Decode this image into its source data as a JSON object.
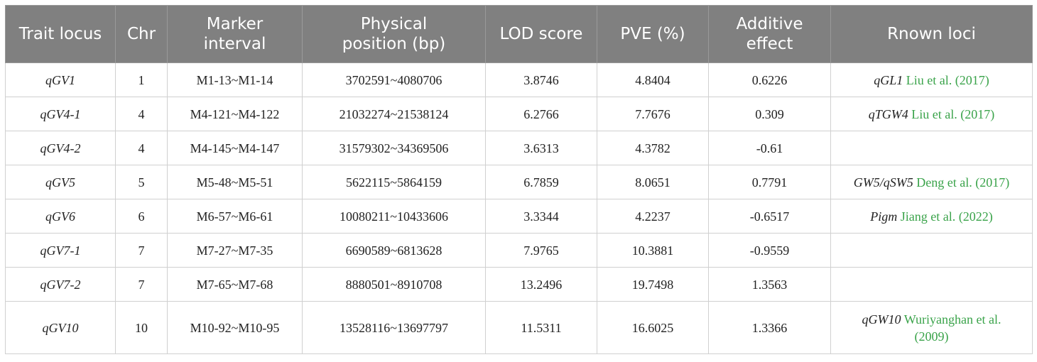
{
  "table": {
    "headers": [
      "Trait locus",
      "Chr",
      "Marker interval",
      "Physical position (bp)",
      "LOD score",
      "PVE (%)",
      "Additive effect",
      "Rnown loci"
    ],
    "rows": [
      {
        "locus": "qGV1",
        "chr": "1",
        "marker": "M1-13~M1-14",
        "position": "3702591~4080706",
        "lod": "3.8746",
        "pve": "4.8404",
        "additive": "0.6226",
        "known_gene": "qGL1",
        "known_cite": "Liu et al. (2017)"
      },
      {
        "locus": "qGV4-1",
        "chr": "4",
        "marker": "M4-121~M4-122",
        "position": "21032274~21538124",
        "lod": "6.2766",
        "pve": "7.7676",
        "additive": "0.309",
        "known_gene": "qTGW4",
        "known_cite": "Liu et al. (2017)"
      },
      {
        "locus": "qGV4-2",
        "chr": "4",
        "marker": "M4-145~M4-147",
        "position": "31579302~34369506",
        "lod": "3.6313",
        "pve": "4.3782",
        "additive": "-0.61",
        "known_gene": "",
        "known_cite": ""
      },
      {
        "locus": "qGV5",
        "chr": "5",
        "marker": "M5-48~M5-51",
        "position": "5622115~5864159",
        "lod": "6.7859",
        "pve": "8.0651",
        "additive": "0.7791",
        "known_gene": "GW5/qSW5",
        "known_cite": "Deng et al. (2017)"
      },
      {
        "locus": "qGV6",
        "chr": "6",
        "marker": "M6-57~M6-61",
        "position": "10080211~10433606",
        "lod": "3.3344",
        "pve": "4.2237",
        "additive": "-0.6517",
        "known_gene": "Pigm",
        "known_cite": "Jiang et al. (2022)"
      },
      {
        "locus": "qGV7-1",
        "chr": "7",
        "marker": "M7-27~M7-35",
        "position": "6690589~6813628",
        "lod": "7.9765",
        "pve": "10.3881",
        "additive": "-0.9559",
        "known_gene": "",
        "known_cite": ""
      },
      {
        "locus": "qGV7-2",
        "chr": "7",
        "marker": "M7-65~M7-68",
        "position": "8880501~8910708",
        "lod": "13.2496",
        "pve": "19.7498",
        "additive": "1.3563",
        "known_gene": "",
        "known_cite": ""
      },
      {
        "locus": "qGV10",
        "chr": "10",
        "marker": "M10-92~M10-95",
        "position": "13528116~13697797",
        "lod": "11.5311",
        "pve": "16.6025",
        "additive": "1.3366",
        "known_gene": "qGW10",
        "known_cite": "Wuriyanghan et al. (2009)"
      }
    ]
  },
  "colors": {
    "header_bg": "#808080",
    "header_text": "#ffffff",
    "citation": "#3aa34a",
    "border": "#d0d0d0"
  }
}
